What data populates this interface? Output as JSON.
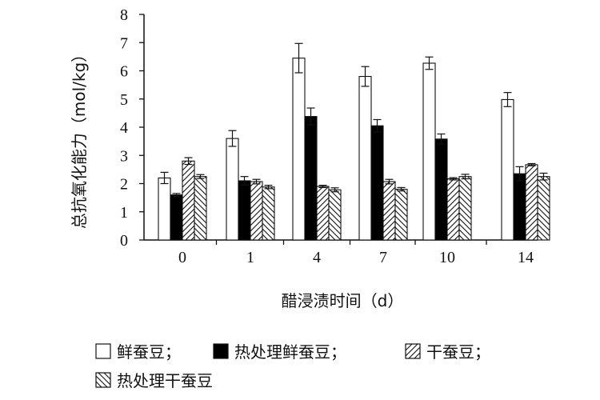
{
  "chart_data": {
    "type": "bar",
    "title": "",
    "xlabel": "醋浸渍时间（d）",
    "ylabel": "总抗氧化能力（mol/kg）",
    "ylim": [
      0,
      8
    ],
    "yticks": [
      0,
      1,
      2,
      3,
      4,
      5,
      6,
      7,
      8
    ],
    "categories": [
      "0",
      "1",
      "4",
      "7",
      "10",
      "14"
    ],
    "grid": false,
    "legend_position": "bottom",
    "series": [
      {
        "name": "鲜蚕豆；",
        "pattern": "empty",
        "fill": "#ffffff",
        "values": [
          2.2,
          3.6,
          6.45,
          5.8,
          6.27,
          4.98
        ],
        "errors": [
          0.2,
          0.28,
          0.52,
          0.35,
          0.22,
          0.25
        ]
      },
      {
        "name": "热处理鲜蚕豆；",
        "pattern": "solid",
        "fill": "#000000",
        "values": [
          1.6,
          2.1,
          4.38,
          4.05,
          3.58,
          2.35
        ],
        "errors": [
          0.05,
          0.15,
          0.3,
          0.22,
          0.18,
          0.25
        ]
      },
      {
        "name": "干蚕豆；",
        "pattern": "hatch-forward",
        "fill": "#ffffff",
        "values": [
          2.8,
          2.07,
          1.9,
          2.07,
          2.17,
          2.67
        ],
        "errors": [
          0.12,
          0.08,
          0.04,
          0.08,
          0.04,
          0.04
        ]
      },
      {
        "name": "热处理干蚕豆",
        "pattern": "hatch-back",
        "fill": "#ffffff",
        "values": [
          2.25,
          1.88,
          1.78,
          1.8,
          2.25,
          2.25
        ],
        "errors": [
          0.07,
          0.06,
          0.07,
          0.06,
          0.08,
          0.12
        ]
      }
    ]
  }
}
